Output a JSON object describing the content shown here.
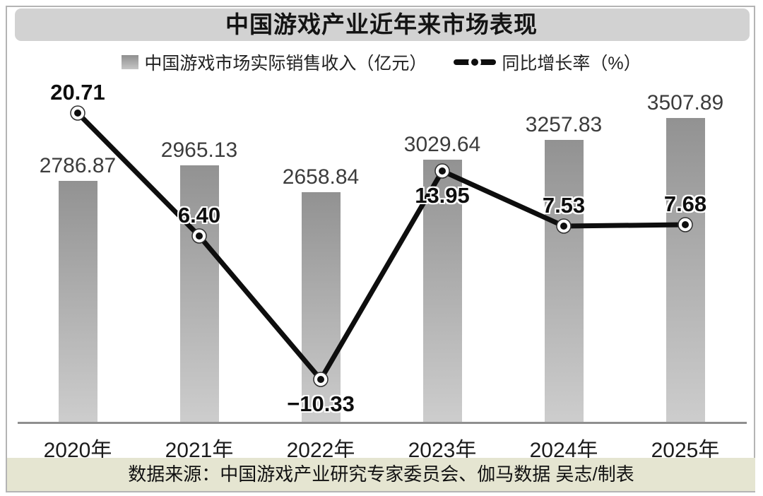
{
  "title": "中国游戏产业近年来市场表现",
  "legend": {
    "revenue_label": "中国游戏市场实际销售收入（亿元）",
    "growth_label": "同比增长率（%）"
  },
  "footer": {
    "source_text": "数据来源：中国游戏产业研究专家委员会、伽马数据 吴志/制表"
  },
  "colors": {
    "title_bar_bg": "#d2d2d2",
    "bar_gradient_top": "#929292",
    "bar_gradient_bottom": "#cdcdcd",
    "line": "#0e0e0e",
    "marker_fill": "#ffffff",
    "marker_dot": "#0e0e0e",
    "marker_stroke": "#2e2e2e",
    "axis": "#8f8f8f",
    "footer_bg": "#e5e5d1",
    "frame_border": "#b4b4b4"
  },
  "chart_data": {
    "type": "combo",
    "title": "中国游戏产业近年来市场表现",
    "categories": [
      "2020年",
      "2021年",
      "2022年",
      "2023年",
      "2024年",
      "2025年"
    ],
    "series": [
      {
        "name": "中国游戏市场实际销售收入（亿元）",
        "type": "bar",
        "values": [
          2786.87,
          2965.13,
          2658.84,
          3029.64,
          3257.83,
          3507.89
        ],
        "labels": [
          "2786.87",
          "2965.13",
          "2658.84",
          "3029.64",
          "3257.83",
          "3507.89"
        ]
      },
      {
        "name": "同比增长率（%）",
        "type": "line",
        "values": [
          20.71,
          6.4,
          -10.33,
          13.95,
          7.53,
          7.68
        ],
        "labels": [
          "20.71",
          "6.40",
          "−10.33",
          "13.95",
          "7.53",
          "7.68"
        ]
      }
    ],
    "xlabel": "",
    "ylabel": "",
    "bar_axis_min": 0,
    "legend_position": "top",
    "grid": false,
    "data_labels": true
  }
}
